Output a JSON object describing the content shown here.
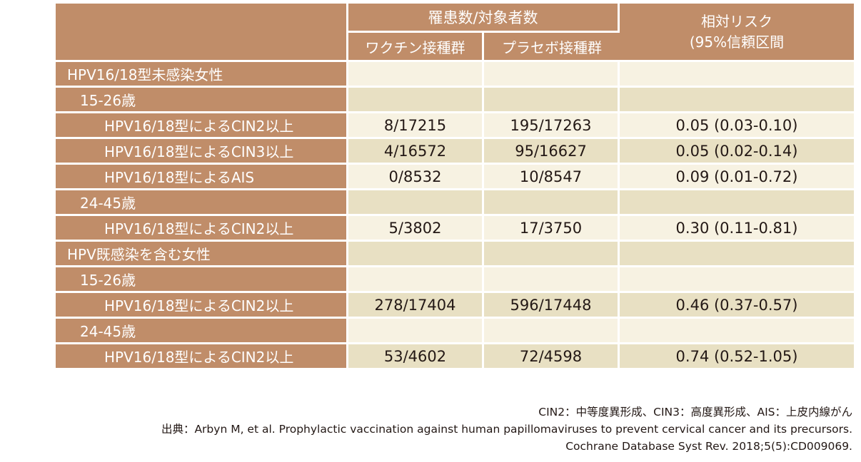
{
  "header": {
    "group_label": "罹患数/対象者数",
    "vaccine_label": "ワクチン接種群",
    "placebo_label": "プラセボ接種群",
    "risk_label_line1": "相対リスク",
    "risk_label_line2": "(95%信頼区間"
  },
  "rows": [
    {
      "label": "HPV16/18型未感染女性",
      "level": 0,
      "vaccine": "",
      "placebo": "",
      "risk": "",
      "shade": "light"
    },
    {
      "label": "15-26歳",
      "level": 1,
      "vaccine": "",
      "placebo": "",
      "risk": "",
      "shade": "dark"
    },
    {
      "label": "HPV16/18型によるCIN2以上",
      "level": 2,
      "vaccine": "8/17215",
      "placebo": "195/17263",
      "risk": "0.05 (0.03-0.10)",
      "shade": "light"
    },
    {
      "label": "HPV16/18型によるCIN3以上",
      "level": 2,
      "vaccine": "4/16572",
      "placebo": "95/16627",
      "risk": "0.05 (0.02-0.14)",
      "shade": "dark"
    },
    {
      "label": "HPV16/18型によるAIS",
      "level": 2,
      "vaccine": "0/8532",
      "placebo": "10/8547",
      "risk": "0.09 (0.01-0.72)",
      "shade": "light"
    },
    {
      "label": "24-45歳",
      "level": 1,
      "vaccine": "",
      "placebo": "",
      "risk": "",
      "shade": "dark"
    },
    {
      "label": "HPV16/18型によるCIN2以上",
      "level": 2,
      "vaccine": "5/3802",
      "placebo": "17/3750",
      "risk": "0.30 (0.11-0.81)",
      "shade": "light"
    },
    {
      "label": "HPV既感染を含む女性",
      "level": 0,
      "vaccine": "",
      "placebo": "",
      "risk": "",
      "shade": "dark"
    },
    {
      "label": "15-26歳",
      "level": 1,
      "vaccine": "",
      "placebo": "",
      "risk": "",
      "shade": "light"
    },
    {
      "label": "HPV16/18型によるCIN2以上",
      "level": 2,
      "vaccine": "278/17404",
      "placebo": "596/17448",
      "risk": "0.46 (0.37-0.57)",
      "shade": "dark"
    },
    {
      "label": "24-45歳",
      "level": 1,
      "vaccine": "",
      "placebo": "",
      "risk": "",
      "shade": "light"
    },
    {
      "label": "HPV16/18型によるCIN2以上",
      "level": 2,
      "vaccine": "53/4602",
      "placebo": "72/4598",
      "risk": "0.74 (0.52-1.05)",
      "shade": "dark"
    }
  ],
  "notes": {
    "abbreviations": "CIN2：中等度異形成、CIN3：高度異形成、AIS：上皮内線がん",
    "source_line1": "出典：Arbyn M, et al. Prophylactic vaccination against human papillomaviruses to prevent cervical cancer and its precursors.",
    "source_line2": "Cochrane Database Syst Rev. 2018;5(5):CD009069."
  },
  "colors": {
    "header_bg": "#c08d69",
    "row_light": "#f7f2e2",
    "row_dark": "#e8e0c3",
    "text": "#231815"
  }
}
